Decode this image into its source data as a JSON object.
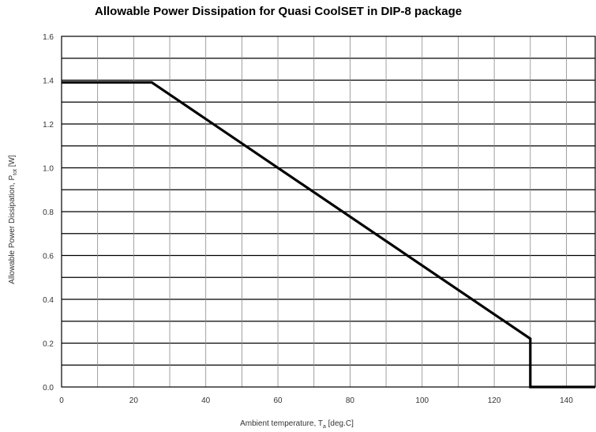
{
  "chart_data": {
    "type": "line",
    "title": "Allowable Power Dissipation for Quasi CoolSET in DIP-8 package",
    "xlabel_main": "Ambient temperature, T",
    "xlabel_sub": "a",
    "xlabel_unit": " [deg.C]",
    "ylabel_main": "Allowable Power Dissipation, P",
    "ylabel_sub": "tot",
    "ylabel_unit": " [W]",
    "xlim": [
      0,
      148
    ],
    "ylim": [
      0,
      1.6
    ],
    "x_ticks": [
      "0",
      "20",
      "40",
      "60",
      "80",
      "100",
      "120",
      "140"
    ],
    "y_ticks": [
      "0.0",
      "0.2",
      "0.4",
      "0.6",
      "0.8",
      "1.0",
      "1.2",
      "1.4",
      "1.6"
    ],
    "grid": true,
    "series": [
      {
        "x": [
          0,
          25,
          130,
          130,
          148
        ],
        "y": [
          1.39,
          1.39,
          0.22,
          0,
          0
        ]
      }
    ]
  }
}
